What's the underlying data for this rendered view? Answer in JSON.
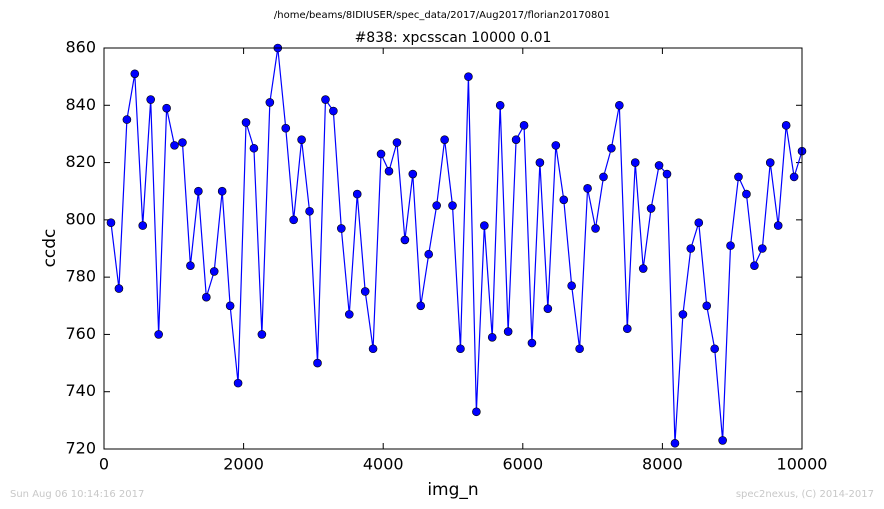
{
  "chart_data": {
    "type": "line",
    "subtitle": "/home/beams/8IDIUSER/spec_data/2017/Aug2017/florian20170801",
    "title": "#838: xpcsscan 10000 0.01",
    "x_label": "img_n",
    "y_label": "ccdc",
    "footer_left": "Sun Aug 06 10:14:16 2017",
    "footer_right": "spec2nexus, (C) 2014-2017",
    "xlim": [
      0,
      10000
    ],
    "xticks": [
      0,
      2000,
      4000,
      6000,
      8000,
      10000
    ],
    "ylim": [
      720,
      860
    ],
    "yticks": [
      720,
      740,
      760,
      780,
      800,
      820,
      840,
      860
    ],
    "grid": false,
    "x": [
      100,
      214,
      328,
      441,
      555,
      669,
      783,
      897,
      1010,
      1124,
      1238,
      1352,
      1466,
      1579,
      1693,
      1807,
      1921,
      2035,
      2148,
      2262,
      2376,
      2490,
      2604,
      2717,
      2831,
      2945,
      3059,
      3173,
      3286,
      3400,
      3514,
      3628,
      3742,
      3855,
      3969,
      4083,
      4197,
      4311,
      4424,
      4538,
      4652,
      4766,
      4880,
      4993,
      5107,
      5221,
      5335,
      5449,
      5562,
      5676,
      5790,
      5904,
      6018,
      6131,
      6245,
      6359,
      6473,
      6587,
      6700,
      6814,
      6928,
      7042,
      7156,
      7269,
      7383,
      7497,
      7611,
      7725,
      7838,
      7952,
      8066,
      8180,
      8294,
      8407,
      8521,
      8635,
      8749,
      8863,
      8976,
      9090,
      9204,
      9318,
      9432,
      9545,
      9659,
      9773,
      9887,
      10000
    ],
    "series": [
      {
        "color": "#0000ff",
        "values": [
          799,
          776,
          835,
          851,
          798,
          842,
          760,
          839,
          826,
          827,
          784,
          810,
          773,
          782,
          810,
          770,
          743,
          834,
          825,
          760,
          841,
          860,
          832,
          800,
          828,
          803,
          750,
          842,
          838,
          797,
          767,
          809,
          775,
          755,
          823,
          817,
          827,
          793,
          816,
          770,
          788,
          805,
          828,
          805,
          755,
          850,
          733,
          798,
          759,
          840,
          761,
          828,
          833,
          757,
          820,
          769,
          826,
          807,
          777,
          755,
          811,
          797,
          815,
          825,
          840,
          762,
          820,
          783,
          804,
          819,
          816,
          722,
          767,
          790,
          799,
          770,
          755,
          723,
          791,
          815,
          809,
          784,
          790,
          820,
          798,
          833,
          815,
          824
        ]
      }
    ]
  }
}
